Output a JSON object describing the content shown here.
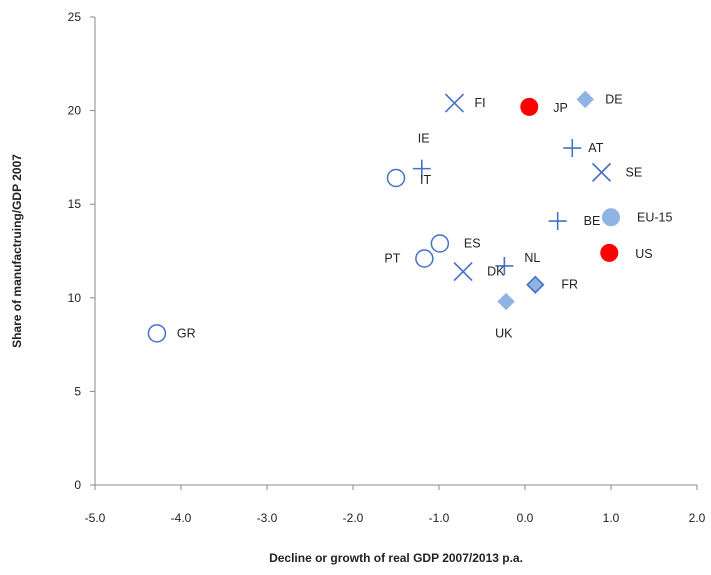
{
  "chart_data": {
    "type": "scatter",
    "title": "",
    "xlabel": "Decline or growth of real GDP 2007/2013   p.a.",
    "ylabel": "Share of manufactruing/GDP  2007",
    "xlim": [
      -5.0,
      2.0
    ],
    "ylim": [
      0,
      25
    ],
    "x_ticks": [
      -5.0,
      -4.0,
      -3.0,
      -2.0,
      -1.0,
      0.0,
      1.0,
      2.0
    ],
    "x_tick_labels": [
      "-5.0",
      "-4.0",
      "-3.0",
      "-2.0",
      "-1.0",
      "0.0",
      "1.0",
      "2.0"
    ],
    "y_ticks": [
      0,
      5,
      10,
      15,
      20,
      25
    ],
    "y_tick_labels": [
      "0",
      "5",
      "10",
      "15",
      "20",
      "25"
    ],
    "grid": false,
    "legend": "none",
    "colors": {
      "blue_line": "#4472C4",
      "light_blue": "#8DB4E2",
      "diamond_fill": "#8DB4E2",
      "diamond_stroke": "#4472C4",
      "red": "#FF0000",
      "axis": "#888888"
    },
    "points": [
      {
        "label": "GR",
        "x": -4.28,
        "y": 8.1,
        "marker": "open-circle"
      },
      {
        "label": "IT",
        "x": -1.5,
        "y": 16.4,
        "marker": "open-circle"
      },
      {
        "label": "PT",
        "x": -1.17,
        "y": 12.1,
        "marker": "open-circle"
      },
      {
        "label": "ES",
        "x": -0.99,
        "y": 12.9,
        "marker": "open-circle"
      },
      {
        "label": "IE",
        "x": -1.2,
        "y": 16.9,
        "marker": "plus"
      },
      {
        "label": "NL",
        "x": -0.24,
        "y": 11.7,
        "marker": "plus"
      },
      {
        "label": "AT",
        "x": 0.55,
        "y": 18.0,
        "marker": "plus"
      },
      {
        "label": "BE",
        "x": 0.38,
        "y": 14.1,
        "marker": "plus"
      },
      {
        "label": "FI",
        "x": -0.82,
        "y": 20.4,
        "marker": "x"
      },
      {
        "label": "DK",
        "x": -0.72,
        "y": 11.4,
        "marker": "x"
      },
      {
        "label": "SE",
        "x": 0.89,
        "y": 16.7,
        "marker": "x"
      },
      {
        "label": "JP",
        "x": 0.05,
        "y": 20.2,
        "marker": "red-circle"
      },
      {
        "label": "US",
        "x": 0.98,
        "y": 12.4,
        "marker": "red-circle"
      },
      {
        "label": "EU-15",
        "x": 1.0,
        "y": 14.3,
        "marker": "filled-circle"
      },
      {
        "label": "DE",
        "x": 0.7,
        "y": 20.6,
        "marker": "diamond"
      },
      {
        "label": "UK",
        "x": -0.22,
        "y": 9.8,
        "marker": "diamond"
      },
      {
        "label": "FR",
        "x": 0.12,
        "y": 10.7,
        "marker": "diamond-outlined"
      }
    ]
  }
}
